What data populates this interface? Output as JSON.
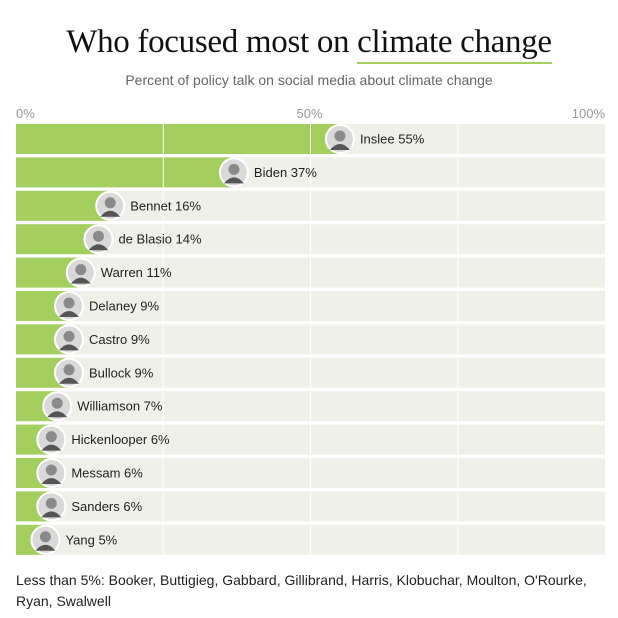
{
  "title_pre": "Who focused most on ",
  "title_highlight": "climate change",
  "subtitle": "Percent of policy talk on social media about climate change",
  "footnote": "Less than 5%: Booker, Buttigieg, Gabbard, Gillibrand, Harris, Klobuchar, Moulton, O'Rourke, Ryan, Swalwell",
  "colors": {
    "bar": "#a3cf5e",
    "track": "#f0f0eb",
    "grid": "#ffffff"
  },
  "chart_data": {
    "type": "bar",
    "orientation": "horizontal",
    "xlim": [
      0,
      100
    ],
    "ticks": [
      {
        "value": 0,
        "label": "0%"
      },
      {
        "value": 50,
        "label": "50%"
      },
      {
        "value": 100,
        "label": "100%"
      }
    ],
    "categories": [
      "Inslee",
      "Biden",
      "Bennet",
      "de Blasio",
      "Warren",
      "Delaney",
      "Castro",
      "Bullock",
      "Williamson",
      "Hickenlooper",
      "Messam",
      "Sanders",
      "Yang"
    ],
    "values": [
      55,
      37,
      16,
      14,
      11,
      9,
      9,
      9,
      7,
      6,
      6,
      6,
      5
    ],
    "labels": [
      "Inslee 55%",
      "Biden 37%",
      "Bennet 16%",
      "de Blasio 14%",
      "Warren 11%",
      "Delaney 9%",
      "Castro 9%",
      "Bullock 9%",
      "Williamson 7%",
      "Hickenlooper 6%",
      "Messam 6%",
      "Sanders 6%",
      "Yang 5%"
    ]
  }
}
